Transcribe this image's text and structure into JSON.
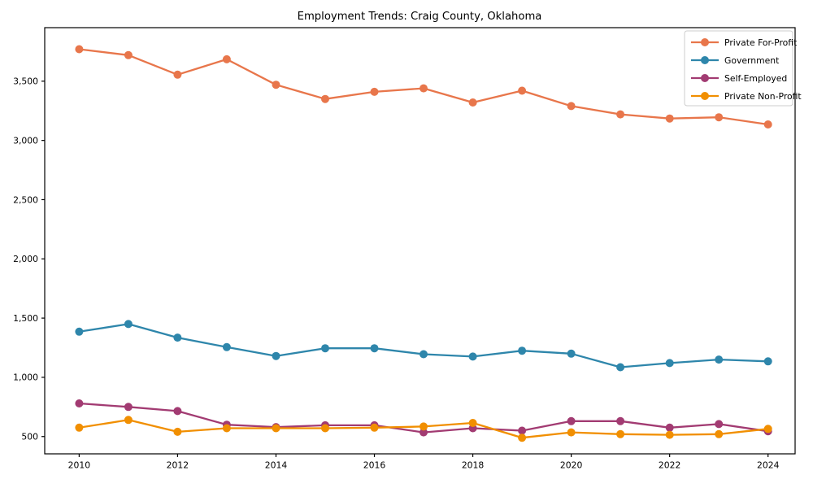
{
  "chart_data": {
    "type": "line",
    "title": "Employment Trends: Craig County, Oklahoma",
    "xlabel": "",
    "ylabel": "",
    "x": [
      2010,
      2011,
      2012,
      2013,
      2014,
      2015,
      2016,
      2017,
      2018,
      2019,
      2020,
      2021,
      2022,
      2023,
      2024
    ],
    "x_ticks": [
      2010,
      2012,
      2014,
      2016,
      2018,
      2020,
      2022,
      2024
    ],
    "x_tick_labels": [
      "2010",
      "2012",
      "2014",
      "2016",
      "2018",
      "2020",
      "2022",
      "2024"
    ],
    "y_ticks": [
      500,
      1000,
      1500,
      2000,
      2500,
      3000,
      3500
    ],
    "y_tick_labels": [
      "500",
      "1,000",
      "1,500",
      "2,000",
      "2,500",
      "3,000",
      "3,500"
    ],
    "xlim": [
      2009.3,
      2024.55
    ],
    "ylim": [
      354,
      3952
    ],
    "grid": false,
    "legend_position": "upper right",
    "series": [
      {
        "name": "Private For-Profit",
        "color": "#E8764B",
        "values": [
          3770,
          3720,
          3555,
          3685,
          3470,
          3350,
          3410,
          3440,
          3320,
          3420,
          3290,
          3220,
          3185,
          3195,
          3135
        ]
      },
      {
        "name": "Government",
        "color": "#2E86AB",
        "values": [
          1385,
          1450,
          1335,
          1255,
          1180,
          1245,
          1245,
          1195,
          1175,
          1225,
          1200,
          1085,
          1120,
          1150,
          1135
        ]
      },
      {
        "name": "Self-Employed",
        "color": "#A23B72",
        "values": [
          780,
          750,
          715,
          600,
          580,
          595,
          595,
          535,
          570,
          550,
          630,
          630,
          575,
          605,
          545
        ]
      },
      {
        "name": "Private Non-Profit",
        "color": "#F18F01",
        "values": [
          575,
          640,
          540,
          570,
          570,
          570,
          575,
          585,
          615,
          490,
          535,
          520,
          515,
          520,
          565
        ]
      }
    ]
  },
  "colors": {
    "spine": "#000000",
    "background": "#ffffff",
    "legend_border": "#cccccc"
  }
}
